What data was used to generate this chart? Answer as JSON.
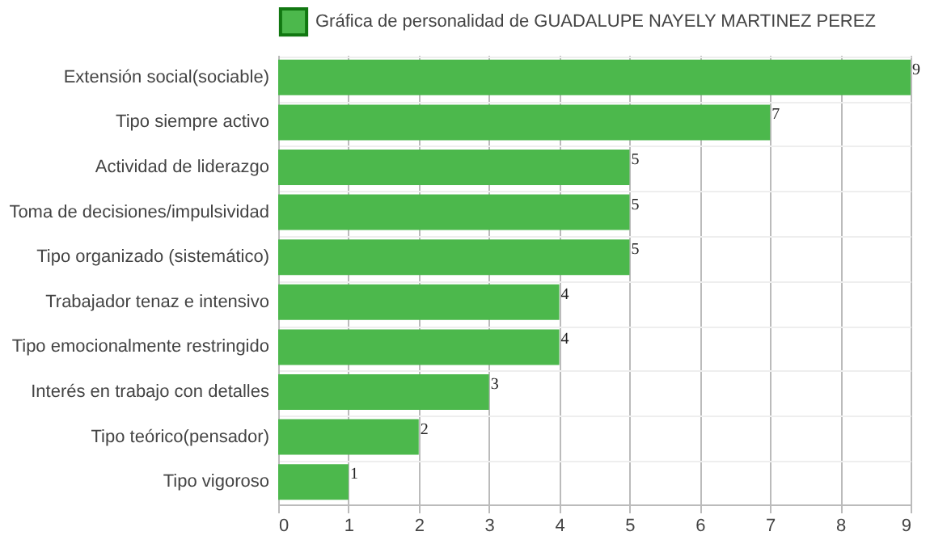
{
  "chart_data": {
    "type": "bar",
    "orientation": "horizontal",
    "categories": [
      "Extensión social(sociable)",
      "Tipo siempre activo",
      "Actividad de liderazgo",
      "Toma de decisiones/impulsividad",
      "Tipo organizado (sistemático)",
      "Trabajador tenaz e intensivo",
      "Tipo emocionalmente restringido",
      "Interés en trabajo con detalles",
      "Tipo teórico(pensador)",
      "Tipo vigoroso"
    ],
    "series": [
      {
        "name": "Gráfica de personalidad de GUADALUPE NAYELY MARTINEZ PEREZ",
        "color": "#4cb84c",
        "values": [
          9,
          7,
          5,
          5,
          5,
          4,
          4,
          3,
          2,
          1
        ]
      }
    ],
    "xlim": [
      0,
      9
    ],
    "xticks": [
      0,
      1,
      2,
      3,
      4,
      5,
      6,
      7,
      8,
      9
    ],
    "grid": true,
    "legend": "top",
    "data_labels": true
  }
}
